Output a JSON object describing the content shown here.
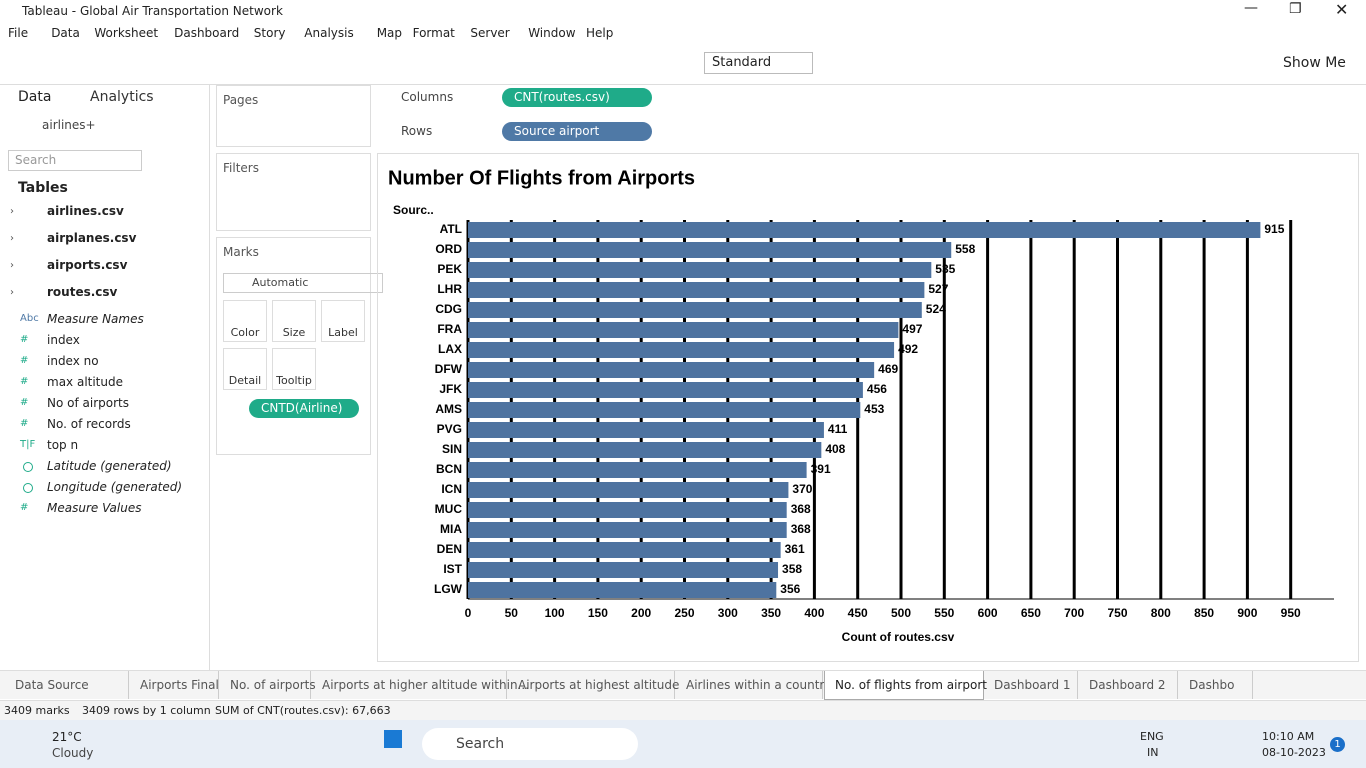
{
  "window": {
    "title": "Tableau - Global Air Transportation Network"
  },
  "menu": [
    "File",
    "Data",
    "Worksheet",
    "Dashboard",
    "Story",
    "Analysis",
    "Map",
    "Format",
    "Server",
    "Window",
    "Help"
  ],
  "toolbar": {
    "fit": "Standard",
    "show_me": "Show Me"
  },
  "data_pane": {
    "tabs": [
      "Data",
      "Analytics"
    ],
    "source": "airlines+",
    "search_placeholder": "Search",
    "tables_header": "Tables",
    "tables": [
      "airlines.csv",
      "airplanes.csv",
      "airports.csv",
      "routes.csv"
    ],
    "fields": [
      {
        "icon": "Abc",
        "name": "Measure Names"
      },
      {
        "icon": "#",
        "name": "index"
      },
      {
        "icon": "#",
        "name": "index no"
      },
      {
        "icon": "#",
        "name": "max altitude"
      },
      {
        "icon": "#",
        "name": "No of airports"
      },
      {
        "icon": "#",
        "name": "No. of records"
      },
      {
        "icon": "T|F",
        "name": "top n"
      },
      {
        "name": "Latitude (generated)"
      },
      {
        "name": "Longitude (generated)"
      },
      {
        "icon": "#",
        "name": "Measure Values"
      }
    ]
  },
  "shelves": {
    "pages": "Pages",
    "filters": "Filters",
    "columns": "Columns",
    "columns_pill": "CNT(routes.csv)",
    "rows": "Rows",
    "rows_pill": "Source airport"
  },
  "marks": {
    "header": "Marks",
    "type": "Automatic",
    "buttons": [
      "Color",
      "Size",
      "Label",
      "Detail",
      "Tooltip"
    ],
    "pill": "CNTD(Airline)"
  },
  "chart_data": {
    "type": "hbar",
    "title": "Number Of Flights from Airports",
    "y_header": "Sourc..",
    "xlabel": "Count of routes.csv",
    "color": "#4e73a0",
    "categories": [
      "ATL",
      "ORD",
      "PEK",
      "LHR",
      "CDG",
      "FRA",
      "LAX",
      "DFW",
      "JFK",
      "AMS",
      "PVG",
      "SIN",
      "BCN",
      "ICN",
      "MUC",
      "MIA",
      "DEN",
      "IST",
      "LGW"
    ],
    "values": [
      915,
      558,
      535,
      527,
      524,
      497,
      492,
      469,
      456,
      453,
      411,
      408,
      391,
      370,
      368,
      368,
      361,
      358,
      356
    ],
    "xlim": [
      0,
      1000
    ],
    "xticks": [
      0,
      50,
      100,
      150,
      200,
      250,
      300,
      350,
      400,
      450,
      500,
      550,
      600,
      650,
      700,
      750,
      800,
      850,
      900,
      950
    ],
    "grid": true
  },
  "sheet_tabs": {
    "tabs": [
      "Data Source",
      "Airports Final",
      "No. of airports",
      "Airports at higher altitude within...",
      "Airports at highest altitude",
      "Airlines within a country",
      "No. of flights from airport",
      "Dashboard 1",
      "Dashboard 2",
      "Dashbo"
    ],
    "active": 6
  },
  "status": [
    "3409 marks",
    "3409 rows by 1 column",
    "SUM of CNT(routes.csv): 67,663"
  ],
  "taskbar": {
    "temp": "21°C",
    "weather": "Cloudy",
    "search": "Search",
    "lang": "ENG",
    "region": "IN",
    "time": "10:10 AM",
    "date": "08-10-2023",
    "badge": "1"
  }
}
